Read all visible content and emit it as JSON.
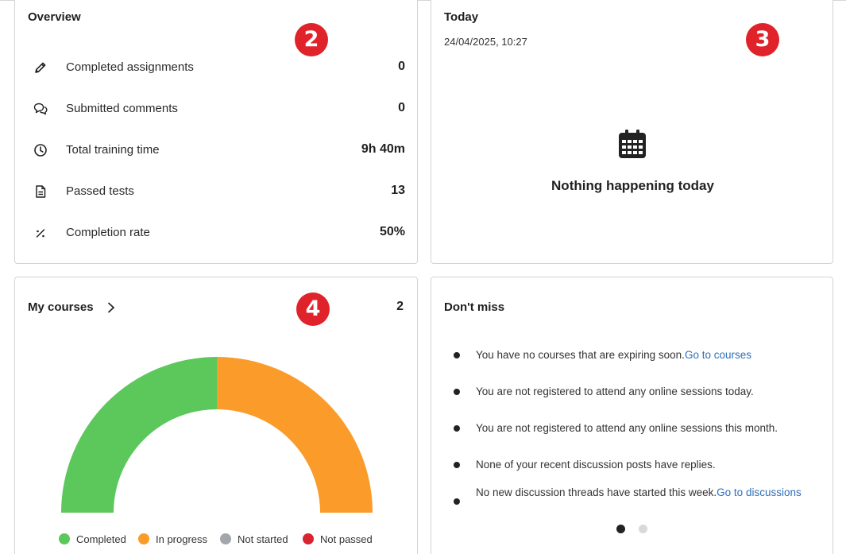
{
  "overview": {
    "title": "Overview",
    "badge": "2",
    "stats": [
      {
        "icon": "pencil-icon",
        "label": "Completed assignments",
        "value": "0"
      },
      {
        "icon": "comments-icon",
        "label": "Submitted comments",
        "value": "0"
      },
      {
        "icon": "clock-icon",
        "label": "Total training time",
        "value": "9h 40m"
      },
      {
        "icon": "document-icon",
        "label": "Passed tests",
        "value": "13"
      },
      {
        "icon": "percent-icon",
        "label": "Completion rate",
        "value": "50%"
      }
    ]
  },
  "today": {
    "title": "Today",
    "badge": "3",
    "datetime": "24/04/2025, 10:27",
    "icon": "calendar-icon",
    "empty_message": "Nothing happening today"
  },
  "my_courses": {
    "title": "My courses",
    "badge": "4",
    "count": "2",
    "icon": "chevron-right-icon",
    "chart_data": {
      "type": "pie",
      "shape": "semi-donut",
      "categories": [
        "Completed",
        "In progress",
        "Not started",
        "Not passed"
      ],
      "values": [
        1,
        1,
        0,
        0
      ],
      "colors": [
        "#5cc85c",
        "#fa9b2a",
        "#a3a6ab",
        "#d9242f"
      ],
      "legend_position": "bottom"
    },
    "legend": [
      {
        "label": "Completed",
        "color": "#5cc85c"
      },
      {
        "label": "In progress",
        "color": "#fa9b2a"
      },
      {
        "label": "Not started",
        "color": "#a3a6ab"
      },
      {
        "label": "Not passed",
        "color": "#d9242f"
      }
    ]
  },
  "dont_miss": {
    "title": "Don't miss",
    "items": [
      {
        "text": "You have no courses that are expiring soon.",
        "link": "Go to courses"
      },
      {
        "text": "You are not registered to attend any online sessions today.",
        "link": ""
      },
      {
        "text": "You are not registered to attend any online sessions this month.",
        "link": ""
      },
      {
        "text": "None of your recent discussion posts have replies.",
        "link": ""
      },
      {
        "text": "No new discussion threads have started this week.",
        "link": "Go to discussions"
      }
    ],
    "pager": {
      "pages": 2,
      "active": 1
    }
  },
  "colors": {
    "badge": "#e0222a",
    "link": "#2f6fb7",
    "border": "#d3d3d3"
  }
}
